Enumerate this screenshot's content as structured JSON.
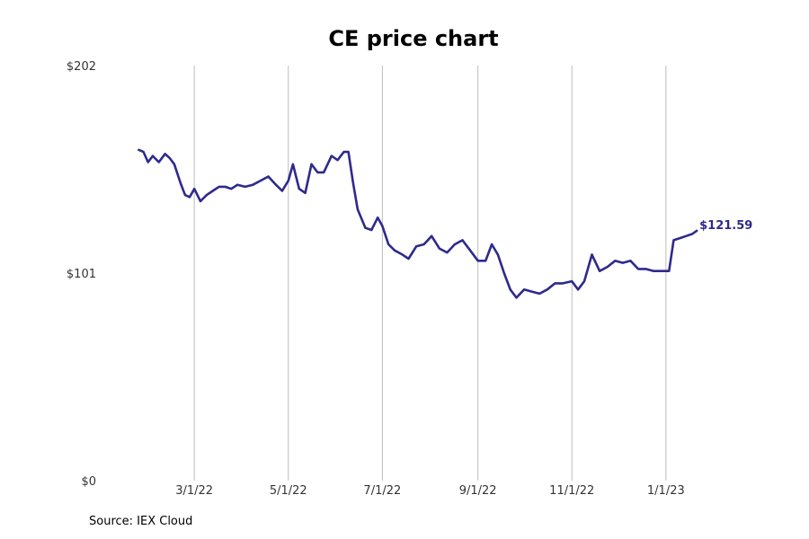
{
  "chart_data": {
    "type": "line",
    "title": "CE price chart",
    "xlabel": "",
    "ylabel": "",
    "ylim": [
      0,
      202
    ],
    "xlim": [
      "2022-01-01",
      "2023-02-22"
    ],
    "y_ticks": [
      {
        "value": 0,
        "label": "$0"
      },
      {
        "value": 101,
        "label": "$101"
      },
      {
        "value": 202,
        "label": "$202"
      }
    ],
    "x_ticks": [
      {
        "date": "2022-03-01",
        "label": "3/1/22"
      },
      {
        "date": "2022-05-01",
        "label": "5/1/22"
      },
      {
        "date": "2022-07-01",
        "label": "7/1/22"
      },
      {
        "date": "2022-09-01",
        "label": "9/1/22"
      },
      {
        "date": "2022-11-01",
        "label": "11/1/22"
      },
      {
        "date": "2023-01-01",
        "label": "1/1/23"
      }
    ],
    "grid": "vertical",
    "line_color": "#2e2a8c",
    "last_label": "$121.59",
    "series": [
      {
        "x": [
          "2022-01-24",
          "2022-01-27",
          "2022-01-30",
          "2022-02-02",
          "2022-02-06",
          "2022-02-10",
          "2022-02-13",
          "2022-02-16",
          "2022-02-20",
          "2022-02-23",
          "2022-02-26",
          "2022-03-01",
          "2022-03-05",
          "2022-03-09",
          "2022-03-13",
          "2022-03-17",
          "2022-03-21",
          "2022-03-25",
          "2022-03-29",
          "2022-04-03",
          "2022-04-08",
          "2022-04-13",
          "2022-04-18",
          "2022-04-23",
          "2022-04-27",
          "2022-05-01",
          "2022-05-04",
          "2022-05-08",
          "2022-05-12",
          "2022-05-16",
          "2022-05-20",
          "2022-05-24",
          "2022-05-29",
          "2022-06-02",
          "2022-06-06",
          "2022-06-09",
          "2022-06-12",
          "2022-06-15",
          "2022-06-20",
          "2022-06-24",
          "2022-06-28",
          "2022-07-01",
          "2022-07-05",
          "2022-07-09",
          "2022-07-14",
          "2022-07-18",
          "2022-07-23",
          "2022-07-28",
          "2022-08-02",
          "2022-08-07",
          "2022-08-12",
          "2022-08-17",
          "2022-08-22",
          "2022-08-27",
          "2022-09-01",
          "2022-09-06",
          "2022-09-10",
          "2022-09-14",
          "2022-09-18",
          "2022-09-22",
          "2022-09-26",
          "2022-10-01",
          "2022-10-06",
          "2022-10-11",
          "2022-10-16",
          "2022-10-21",
          "2022-10-26",
          "2022-11-01",
          "2022-11-05",
          "2022-11-09",
          "2022-11-14",
          "2022-11-19",
          "2022-11-24",
          "2022-11-29",
          "2022-12-04",
          "2022-12-09",
          "2022-12-14",
          "2022-12-19",
          "2022-12-24",
          "2022-12-29",
          "2023-01-03",
          "2023-01-06",
          "2023-01-10",
          "2023-01-14",
          "2023-01-18",
          "2023-01-21"
        ],
        "values": [
          161,
          160,
          155,
          158,
          155,
          159,
          157,
          154,
          145,
          139,
          138,
          142,
          136,
          139,
          141,
          143,
          143,
          142,
          144,
          143,
          144,
          146,
          148,
          144,
          141,
          146,
          154,
          142,
          140,
          154,
          150,
          150,
          158,
          156,
          160,
          160,
          145,
          132,
          123,
          122,
          128,
          124,
          115,
          112,
          110,
          108,
          114,
          115,
          119,
          113,
          111,
          115,
          117,
          112,
          107,
          107,
          115,
          110,
          101,
          93,
          89,
          93,
          92,
          91,
          93,
          96,
          96,
          97,
          93,
          97,
          110,
          102,
          104,
          107,
          106,
          107,
          103,
          103,
          102,
          102,
          102,
          117,
          118,
          119,
          120,
          121.59
        ]
      }
    ]
  },
  "footer": {
    "source": "Source: IEX Cloud"
  }
}
